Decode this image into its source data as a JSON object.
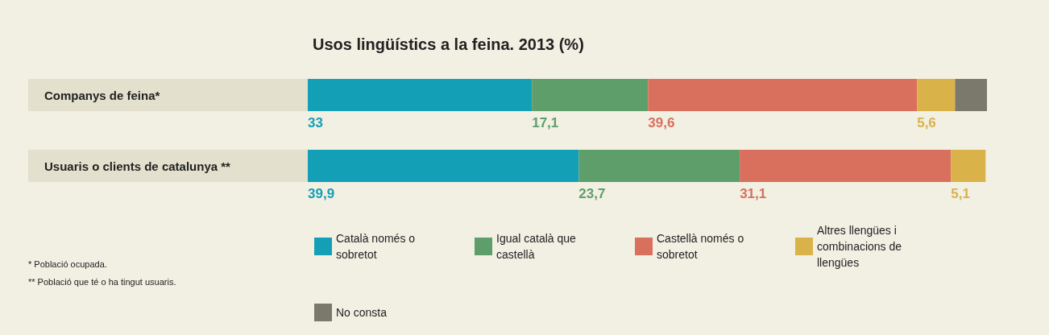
{
  "chart_data": {
    "type": "bar",
    "orientation": "horizontal",
    "stacked": true,
    "title": "Usos lingüístics a la feina. 2013 (%)",
    "categories": [
      "Companys de feina*",
      "Usuaris o clients de catalunya **"
    ],
    "series": [
      {
        "name": "Català només o sobretot",
        "color": "#13a0b6",
        "values": [
          33,
          39.9
        ],
        "value_labels": [
          "33",
          "39,9"
        ]
      },
      {
        "name": "Igual català que castellà",
        "color": "#5e9e6b",
        "values": [
          17.1,
          23.7
        ],
        "value_labels": [
          "17,1",
          "23,7"
        ]
      },
      {
        "name": "Castellà només o sobretot",
        "color": "#d96f5d",
        "values": [
          39.6,
          31.1
        ],
        "value_labels": [
          "39,6",
          "31,1"
        ]
      },
      {
        "name": "Altres llengües i combinacions de llengües",
        "color": "#d9b34a",
        "values": [
          5.6,
          5.1
        ],
        "value_labels": [
          "5,6",
          "5,1"
        ]
      },
      {
        "name": "No consta",
        "color": "#7b796b",
        "values": [
          4.7,
          null
        ],
        "value_labels": [
          null,
          null
        ]
      }
    ],
    "xlim": [
      0,
      100
    ],
    "tick_labels": "y",
    "grid": false,
    "legend": "bottom",
    "annotations": [
      "* Població ocupada.",
      "** Població que té o ha tingut usuaris."
    ]
  }
}
